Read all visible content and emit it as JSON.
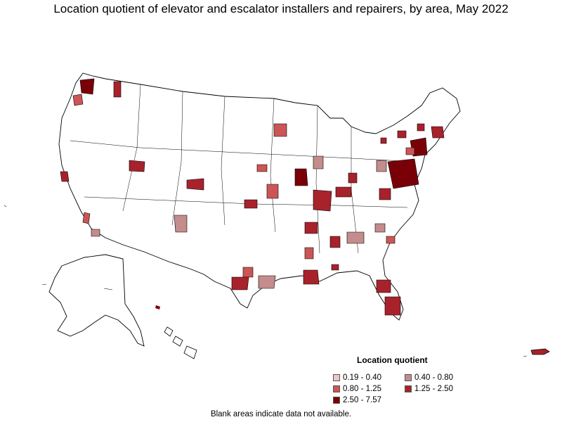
{
  "title": "Location quotient of elevator and escalator installers and repairers, by area, May 2022",
  "legend": {
    "title": "Location quotient",
    "items": [
      {
        "label": "0.19 - 0.40",
        "color": "#f2c4c4"
      },
      {
        "label": "0.40 - 0.80",
        "color": "#c48c8c"
      },
      {
        "label": "0.80 - 1.25",
        "color": "#cc5555"
      },
      {
        "label": "1.25 - 2.50",
        "color": "#a8222c"
      },
      {
        "label": "2.50 - 7.57",
        "color": "#7a0008"
      }
    ]
  },
  "note": "Blank areas indicate data not available."
}
